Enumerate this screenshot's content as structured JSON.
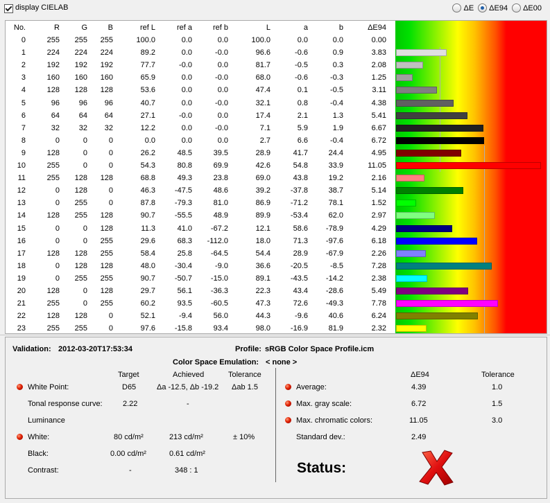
{
  "display_cielab": {
    "label": "display CIELAB",
    "checked": true
  },
  "radio": [
    {
      "label": "ΔE",
      "selected": false
    },
    {
      "label": "ΔE94",
      "selected": true
    },
    {
      "label": "ΔE00",
      "selected": false
    }
  ],
  "table": {
    "headers": [
      "No.",
      "R",
      "G",
      "B",
      "ref L",
      "ref a",
      "ref b",
      "L",
      "a",
      "b",
      "ΔE94"
    ],
    "rows": [
      [
        "0",
        "255",
        "255",
        "255",
        "100.0",
        "0.0",
        "0.0",
        "100.0",
        "0.0",
        "0.0",
        "0.00"
      ],
      [
        "1",
        "224",
        "224",
        "224",
        "89.2",
        "0.0",
        "-0.0",
        "96.6",
        "-0.6",
        "0.9",
        "3.83"
      ],
      [
        "2",
        "192",
        "192",
        "192",
        "77.7",
        "-0.0",
        "0.0",
        "81.7",
        "-0.5",
        "0.3",
        "2.08"
      ],
      [
        "3",
        "160",
        "160",
        "160",
        "65.9",
        "0.0",
        "-0.0",
        "68.0",
        "-0.6",
        "-0.3",
        "1.25"
      ],
      [
        "4",
        "128",
        "128",
        "128",
        "53.6",
        "0.0",
        "0.0",
        "47.4",
        "0.1",
        "-0.5",
        "3.11"
      ],
      [
        "5",
        "96",
        "96",
        "96",
        "40.7",
        "0.0",
        "-0.0",
        "32.1",
        "0.8",
        "-0.4",
        "4.38"
      ],
      [
        "6",
        "64",
        "64",
        "64",
        "27.1",
        "-0.0",
        "0.0",
        "17.4",
        "2.1",
        "1.3",
        "5.41"
      ],
      [
        "7",
        "32",
        "32",
        "32",
        "12.2",
        "0.0",
        "-0.0",
        "7.1",
        "5.9",
        "1.9",
        "6.67"
      ],
      [
        "8",
        "0",
        "0",
        "0",
        "0.0",
        "0.0",
        "0.0",
        "2.7",
        "6.6",
        "-0.4",
        "6.72"
      ],
      [
        "9",
        "128",
        "0",
        "0",
        "26.2",
        "48.5",
        "39.5",
        "28.9",
        "41.7",
        "24.4",
        "4.95"
      ],
      [
        "10",
        "255",
        "0",
        "0",
        "54.3",
        "80.8",
        "69.9",
        "42.6",
        "54.8",
        "33.9",
        "11.05"
      ],
      [
        "11",
        "255",
        "128",
        "128",
        "68.8",
        "49.3",
        "23.8",
        "69.0",
        "43.8",
        "19.2",
        "2.16"
      ],
      [
        "12",
        "0",
        "128",
        "0",
        "46.3",
        "-47.5",
        "48.6",
        "39.2",
        "-37.8",
        "38.7",
        "5.14"
      ],
      [
        "13",
        "0",
        "255",
        "0",
        "87.8",
        "-79.3",
        "81.0",
        "86.9",
        "-71.2",
        "78.1",
        "1.52"
      ],
      [
        "14",
        "128",
        "255",
        "128",
        "90.7",
        "-55.5",
        "48.9",
        "89.9",
        "-53.4",
        "62.0",
        "2.97"
      ],
      [
        "15",
        "0",
        "0",
        "128",
        "11.3",
        "41.0",
        "-67.2",
        "12.1",
        "58.6",
        "-78.9",
        "4.29"
      ],
      [
        "16",
        "0",
        "0",
        "255",
        "29.6",
        "68.3",
        "-112.0",
        "18.0",
        "71.3",
        "-97.6",
        "6.18"
      ],
      [
        "17",
        "128",
        "128",
        "255",
        "58.4",
        "25.8",
        "-64.5",
        "54.4",
        "28.9",
        "-67.9",
        "2.26"
      ],
      [
        "18",
        "0",
        "128",
        "128",
        "48.0",
        "-30.4",
        "-9.0",
        "36.6",
        "-20.5",
        "-8.5",
        "7.28"
      ],
      [
        "19",
        "0",
        "255",
        "255",
        "90.7",
        "-50.7",
        "-15.0",
        "89.1",
        "-43.5",
        "-14.2",
        "2.38"
      ],
      [
        "20",
        "128",
        "0",
        "128",
        "29.7",
        "56.1",
        "-36.3",
        "22.3",
        "43.4",
        "-28.6",
        "5.49"
      ],
      [
        "21",
        "255",
        "0",
        "255",
        "60.2",
        "93.5",
        "-60.5",
        "47.3",
        "72.6",
        "-49.3",
        "7.78"
      ],
      [
        "22",
        "128",
        "128",
        "0",
        "52.1",
        "-9.4",
        "56.0",
        "44.3",
        "-9.6",
        "40.6",
        "6.24"
      ],
      [
        "23",
        "255",
        "255",
        "0",
        "97.6",
        "-15.8",
        "93.4",
        "98.0",
        "-16.9",
        "81.9",
        "2.32"
      ]
    ]
  },
  "info": {
    "validation_label": "Validation:",
    "validation_value": "2012-03-20T17:53:34",
    "profile_label": "Profile:",
    "profile_value": "sRGB Color Space Profile.icm",
    "emulation_label": "Color Space Emulation:",
    "emulation_value": "< none >",
    "col_target": "Target",
    "col_achieved": "Achieved",
    "col_tolerance": "Tolerance",
    "white_point": {
      "label": "White Point:",
      "target": "D65",
      "achieved": "Δa -12.5, Δb -19.2",
      "tolerance": "Δab 1.5"
    },
    "trc": {
      "label": "Tonal response curve:",
      "target": "2.22",
      "achieved": "-"
    },
    "luminance": {
      "label": "Luminance"
    },
    "white": {
      "label": "White:",
      "target": "80 cd/m²",
      "achieved": "213 cd/m²",
      "tolerance": "± 10%"
    },
    "black": {
      "label": "Black:",
      "target": "0.00 cd/m²",
      "achieved": "0.61 cd/m²"
    },
    "contrast": {
      "label": "Contrast:",
      "target": "-",
      "achieved": "348 : 1"
    },
    "right_col_de": "ΔE94",
    "right_col_tol": "Tolerance",
    "average": {
      "label": "Average:",
      "value": "4.39",
      "tolerance": "1.0"
    },
    "max_gray": {
      "label": "Max. gray scale:",
      "value": "6.72",
      "tolerance": "1.5"
    },
    "max_chroma": {
      "label": "Max. chromatic colors:",
      "value": "11.05",
      "tolerance": "3.0"
    },
    "std_dev": {
      "label": "Standard dev.:",
      "value": "2.49"
    },
    "status_label": "Status:",
    "status_icon": "red-x-icon"
  }
}
